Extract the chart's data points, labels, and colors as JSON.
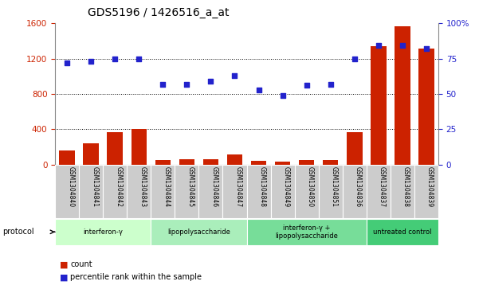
{
  "title": "GDS5196 / 1426516_a_at",
  "samples": [
    "GSM1304840",
    "GSM1304841",
    "GSM1304842",
    "GSM1304843",
    "GSM1304844",
    "GSM1304845",
    "GSM1304846",
    "GSM1304847",
    "GSM1304848",
    "GSM1304849",
    "GSM1304850",
    "GSM1304851",
    "GSM1304836",
    "GSM1304837",
    "GSM1304838",
    "GSM1304839"
  ],
  "counts": [
    165,
    240,
    370,
    400,
    55,
    65,
    65,
    115,
    40,
    35,
    55,
    55,
    370,
    1340,
    1560,
    1310
  ],
  "percentile_ranks": [
    72,
    73,
    75,
    75,
    57,
    57,
    59,
    63,
    53,
    49,
    56,
    57,
    75,
    84,
    84,
    82
  ],
  "groups": [
    {
      "label": "interferon-γ",
      "start": 0,
      "end": 4,
      "color": "#ccffcc"
    },
    {
      "label": "lipopolysaccharide",
      "start": 4,
      "end": 8,
      "color": "#aaeebb"
    },
    {
      "label": "interferon-γ +\nlipopolysaccharide",
      "start": 8,
      "end": 13,
      "color": "#77dd99"
    },
    {
      "label": "untreated control",
      "start": 13,
      "end": 16,
      "color": "#44cc77"
    }
  ],
  "bar_color": "#cc2200",
  "dot_color": "#2222cc",
  "ylim_left": [
    0,
    1600
  ],
  "ylim_right": [
    0,
    100
  ],
  "yticks_left": [
    0,
    400,
    800,
    1200,
    1600
  ],
  "yticks_right": [
    0,
    25,
    50,
    75,
    100
  ],
  "ytick_labels_right": [
    "0",
    "25",
    "50",
    "75",
    "100%"
  ],
  "grid_lines": [
    400,
    800,
    1200
  ],
  "bg_color": "#ffffff",
  "bar_width": 0.65,
  "title_fontsize": 10,
  "legend_count_label": "count",
  "legend_pct_label": "percentile rank within the sample"
}
